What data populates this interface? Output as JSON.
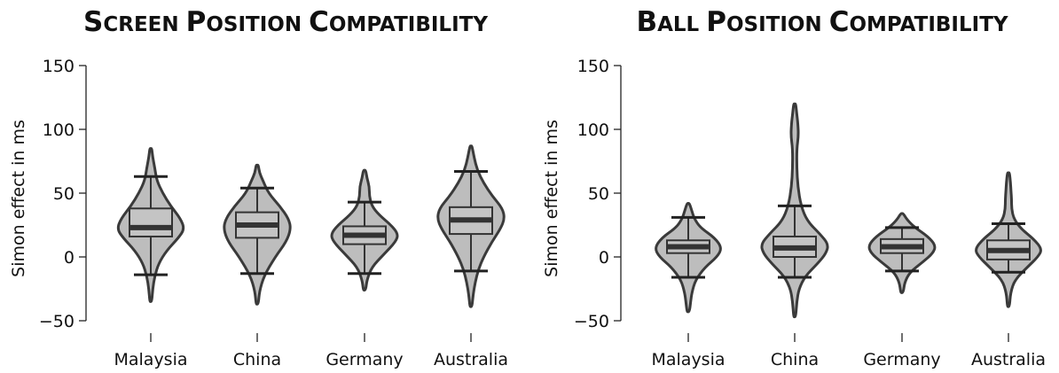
{
  "chart_data": [
    {
      "type": "violin",
      "title": {
        "big1": "S",
        "small1": "CREEN ",
        "big2": "P",
        "small2": "OSITION ",
        "big3": "C",
        "small3": "OMPATIBILITY"
      },
      "xlabel": "",
      "ylabel": "Simon effect in ms",
      "ylim": [
        -50,
        150
      ],
      "yticks": [
        -50,
        0,
        50,
        100,
        150
      ],
      "categories": [
        "Malaysia",
        "China",
        "Germany",
        "Australia"
      ],
      "groups": [
        {
          "category": "Malaysia",
          "whisker_low": -14,
          "q1": 16,
          "median": 23,
          "q3": 38,
          "whisker_high": 63,
          "min": -35,
          "max": 85,
          "density": [
            [
              -35,
              0.5
            ],
            [
              -25,
              1
            ],
            [
              -15,
              2
            ],
            [
              -5,
              4
            ],
            [
              5,
              8
            ],
            [
              15,
              14
            ],
            [
              22,
              17
            ],
            [
              30,
              15
            ],
            [
              40,
              10
            ],
            [
              50,
              6
            ],
            [
              60,
              3
            ],
            [
              70,
              2
            ],
            [
              78,
              1
            ],
            [
              85,
              0.5
            ]
          ]
        },
        {
          "category": "China",
          "whisker_low": -13,
          "q1": 15,
          "median": 25,
          "q3": 35,
          "whisker_high": 54,
          "min": -37,
          "max": 72,
          "density": [
            [
              -37,
              0.5
            ],
            [
              -27,
              1
            ],
            [
              -15,
              3
            ],
            [
              0,
              8
            ],
            [
              12,
              13
            ],
            [
              22,
              15
            ],
            [
              30,
              14
            ],
            [
              40,
              10
            ],
            [
              50,
              5
            ],
            [
              60,
              2.5
            ],
            [
              66,
              1
            ],
            [
              72,
              0.5
            ]
          ]
        },
        {
          "category": "Germany",
          "whisker_low": -13,
          "q1": 10,
          "median": 17,
          "q3": 24,
          "whisker_high": 43,
          "min": -26,
          "max": 68,
          "density": [
            [
              -26,
              0.5
            ],
            [
              -18,
              1
            ],
            [
              -8,
              3
            ],
            [
              2,
              8
            ],
            [
              12,
              13
            ],
            [
              18,
              14
            ],
            [
              25,
              11
            ],
            [
              33,
              6
            ],
            [
              40,
              3
            ],
            [
              48,
              2
            ],
            [
              55,
              2
            ],
            [
              62,
              1
            ],
            [
              68,
              0.5
            ]
          ]
        },
        {
          "category": "Australia",
          "whisker_low": -11,
          "q1": 18,
          "median": 29,
          "q3": 39,
          "whisker_high": 67,
          "min": -39,
          "max": 87,
          "density": [
            [
              -39,
              0.5
            ],
            [
              -30,
              1
            ],
            [
              -20,
              2
            ],
            [
              -10,
              3.5
            ],
            [
              0,
              6
            ],
            [
              12,
              10
            ],
            [
              22,
              14
            ],
            [
              30,
              16
            ],
            [
              38,
              15
            ],
            [
              48,
              10
            ],
            [
              58,
              6
            ],
            [
              68,
              3
            ],
            [
              78,
              1.5
            ],
            [
              87,
              0.5
            ]
          ]
        }
      ]
    },
    {
      "type": "violin",
      "title": {
        "big1": "B",
        "small1": "ALL ",
        "big2": "P",
        "small2": "OSITION ",
        "big3": "C",
        "small3": "OMPATIBILITY"
      },
      "xlabel": "",
      "ylabel": "Simon effect in ms",
      "ylim": [
        -50,
        150
      ],
      "yticks": [
        -50,
        0,
        50,
        100,
        150
      ],
      "categories": [
        "Malaysia",
        "China",
        "Germany",
        "Australia"
      ],
      "groups": [
        {
          "category": "Malaysia",
          "whisker_low": -16,
          "q1": 3,
          "median": 8,
          "q3": 13,
          "whisker_high": 31,
          "min": -43,
          "max": 42,
          "density": [
            [
              -43,
              0.5
            ],
            [
              -35,
              1
            ],
            [
              -28,
              1.5
            ],
            [
              -18,
              3
            ],
            [
              -8,
              7
            ],
            [
              0,
              12
            ],
            [
              7,
              14
            ],
            [
              15,
              11
            ],
            [
              23,
              5
            ],
            [
              30,
              2.5
            ],
            [
              36,
              1.5
            ],
            [
              42,
              0.5
            ]
          ]
        },
        {
          "category": "China",
          "whisker_low": -16,
          "q1": 0,
          "median": 7,
          "q3": 16,
          "whisker_high": 40,
          "min": -47,
          "max": 120,
          "density": [
            [
              -47,
              0.5
            ],
            [
              -35,
              1
            ],
            [
              -25,
              2
            ],
            [
              -15,
              5
            ],
            [
              -5,
              11
            ],
            [
              3,
              15
            ],
            [
              10,
              16
            ],
            [
              18,
              12
            ],
            [
              28,
              6
            ],
            [
              40,
              3
            ],
            [
              55,
              1.5
            ],
            [
              70,
              1
            ],
            [
              85,
              1
            ],
            [
              95,
              1.8
            ],
            [
              105,
              1.5
            ],
            [
              112,
              1
            ],
            [
              120,
              0.5
            ]
          ]
        },
        {
          "category": "Germany",
          "whisker_low": -11,
          "q1": 3,
          "median": 8,
          "q3": 14,
          "whisker_high": 23,
          "min": -28,
          "max": 34,
          "density": [
            [
              -28,
              0.5
            ],
            [
              -20,
              1
            ],
            [
              -12,
              3
            ],
            [
              -4,
              8
            ],
            [
              3,
              12
            ],
            [
              9,
              13
            ],
            [
              16,
              10
            ],
            [
              23,
              5
            ],
            [
              29,
              2
            ],
            [
              34,
              0.5
            ]
          ]
        },
        {
          "category": "Australia",
          "whisker_low": -12,
          "q1": -2,
          "median": 5,
          "q3": 13,
          "whisker_high": 26,
          "min": -39,
          "max": 66,
          "density": [
            [
              -39,
              0.5
            ],
            [
              -28,
              1
            ],
            [
              -18,
              3
            ],
            [
              -8,
              9
            ],
            [
              0,
              14
            ],
            [
              6,
              16
            ],
            [
              14,
              12
            ],
            [
              22,
              6
            ],
            [
              30,
              2.5
            ],
            [
              38,
              1.5
            ],
            [
              45,
              1.5
            ],
            [
              52,
              1.2
            ],
            [
              58,
              1
            ],
            [
              66,
              0.5
            ]
          ]
        }
      ]
    }
  ]
}
